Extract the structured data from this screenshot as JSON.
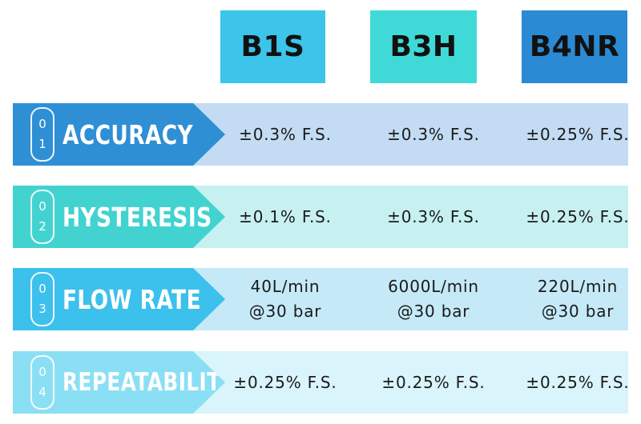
{
  "headers": [
    {
      "label": "B1S",
      "color": "#3cc4ea"
    },
    {
      "label": "B3H",
      "color": "#3fdad8"
    },
    {
      "label": "B4NR",
      "color": "#2a8ad3"
    }
  ],
  "rows": [
    {
      "number_top": "0",
      "number_bottom": "1",
      "label": "ACCURACY",
      "label_color": "#2f8fd5",
      "row_color": "#c3dcf3",
      "values": [
        {
          "line1": "±0.3% F.S.",
          "line2": ""
        },
        {
          "line1": "±0.3% F.S.",
          "line2": ""
        },
        {
          "line1": "±0.25% F.S.",
          "line2": ""
        }
      ]
    },
    {
      "number_top": "0",
      "number_bottom": "2",
      "label": "HYSTERESIS",
      "label_color": "#42d3d1",
      "row_color": "#c7f1f0",
      "values": [
        {
          "line1": "±0.1% F.S.",
          "line2": ""
        },
        {
          "line1": "±0.3% F.S.",
          "line2": ""
        },
        {
          "line1": "±0.25% F.S.",
          "line2": ""
        }
      ]
    },
    {
      "number_top": "0",
      "number_bottom": "3",
      "label": "FLOW RATE",
      "label_color": "#3cc0ec",
      "row_color": "#c5e9f7",
      "values": [
        {
          "line1": "40L/min",
          "line2": "@30 bar"
        },
        {
          "line1": "6000L/min",
          "line2": "@30 bar"
        },
        {
          "line1": "220L/min",
          "line2": "@30 bar"
        }
      ]
    },
    {
      "number_top": "0",
      "number_bottom": "4",
      "label": "REPEATABILITY",
      "label_color": "#8bdff5",
      "row_color": "#d9f4fb",
      "values": [
        {
          "line1": "±0.25% F.S.",
          "line2": ""
        },
        {
          "line1": "±0.25% F.S.",
          "line2": ""
        },
        {
          "line1": "±0.25% F.S.",
          "line2": ""
        }
      ]
    }
  ]
}
